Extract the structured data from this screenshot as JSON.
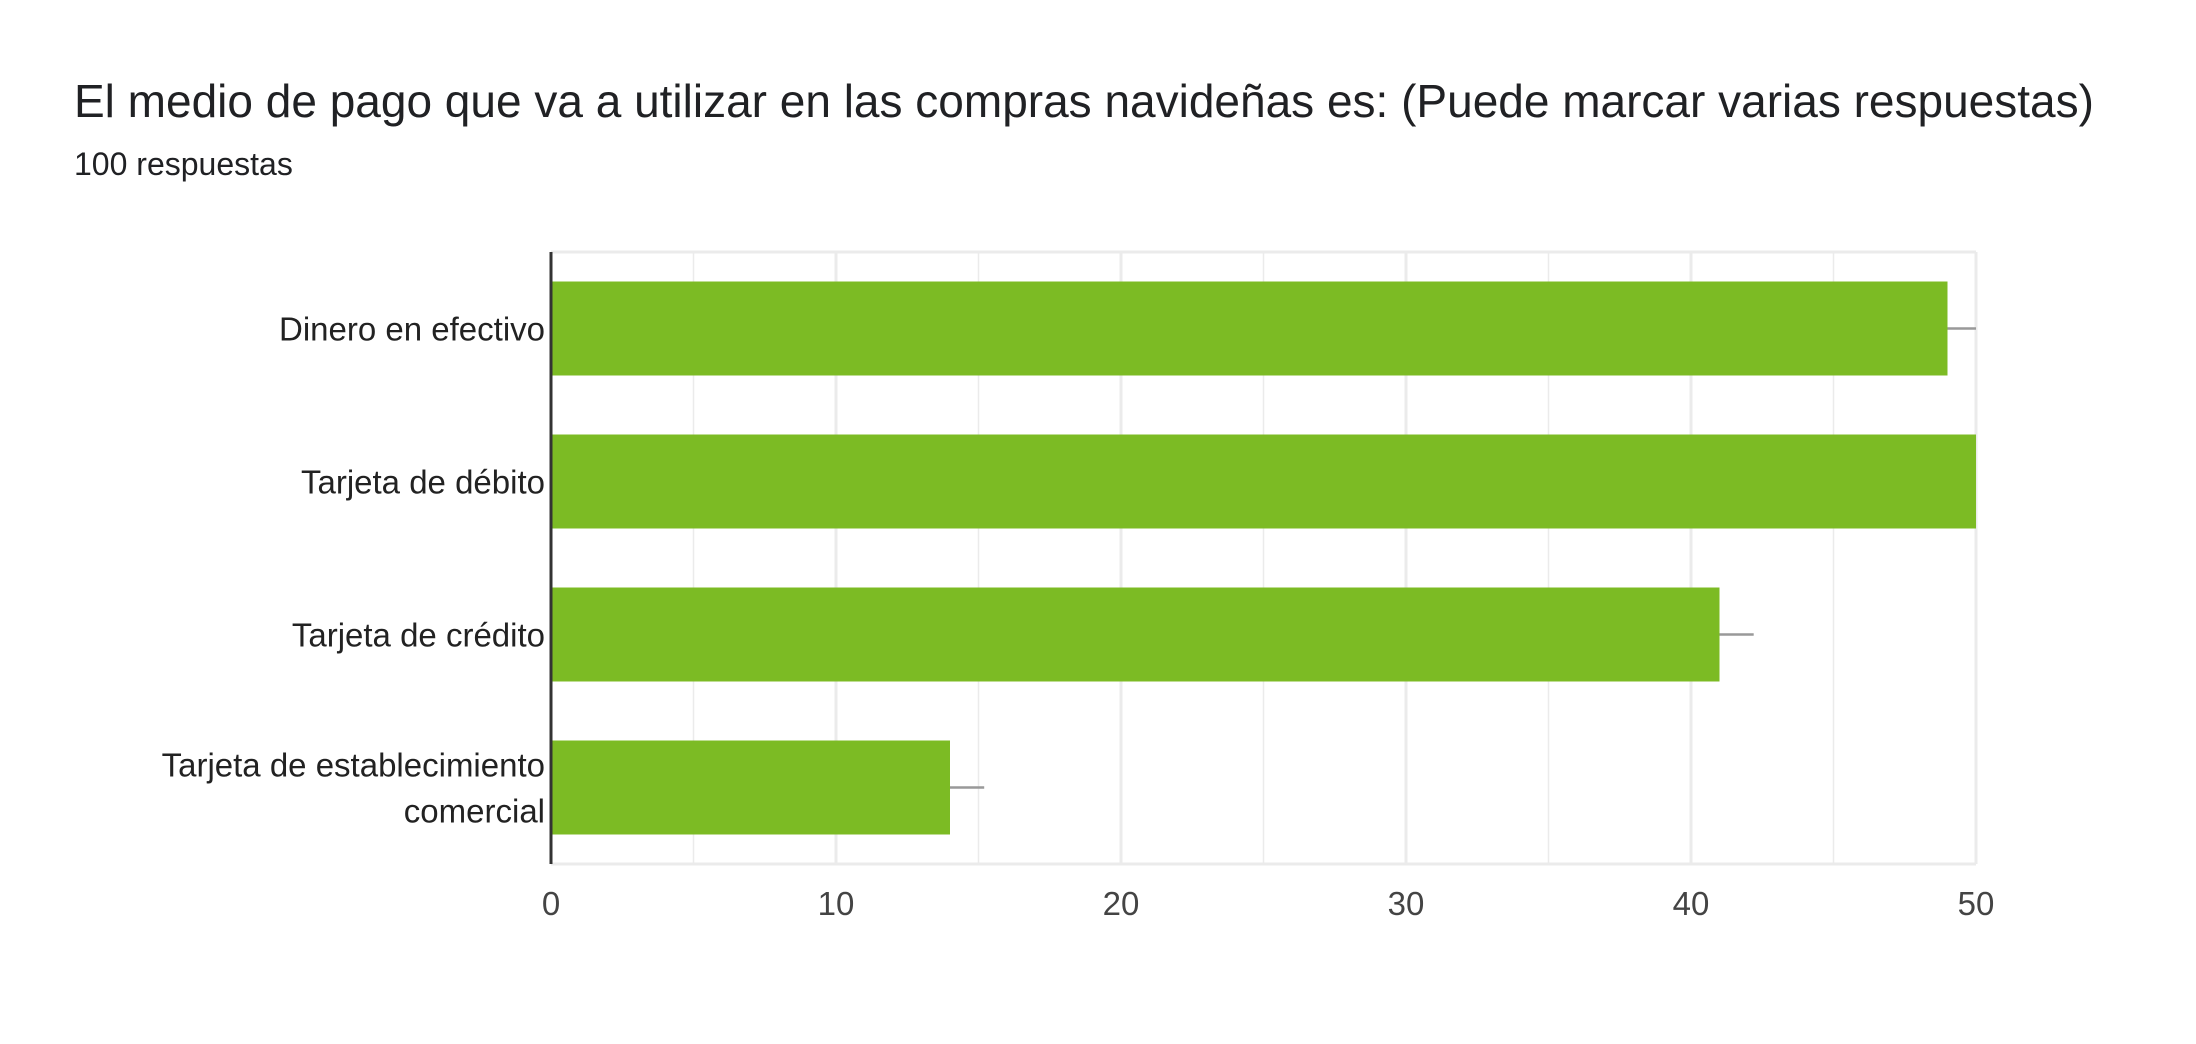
{
  "chart_data": {
    "type": "bar",
    "orientation": "horizontal",
    "title": "El medio de pago que va a utilizar en las compras navideñas es: (Puede marcar varias respuestas)",
    "subtitle": "100 respuestas",
    "categories": [
      [
        "Dinero en efectivo"
      ],
      [
        "Tarjeta de débito"
      ],
      [
        "Tarjeta de crédito"
      ],
      [
        "Tarjeta de establecimiento",
        "comercial"
      ]
    ],
    "values": [
      49,
      50,
      41,
      14
    ],
    "error_bar_ends": [
      50,
      50,
      42.2,
      15.2
    ],
    "xlim": [
      0,
      50
    ],
    "xticks": [
      0,
      10,
      20,
      30,
      40,
      50
    ],
    "grid": true,
    "legend": "none",
    "bar_color": "#7cbb24",
    "grid_color": "#ebebeb",
    "axis_color": "#333333",
    "error_bar_color": "#999999"
  }
}
